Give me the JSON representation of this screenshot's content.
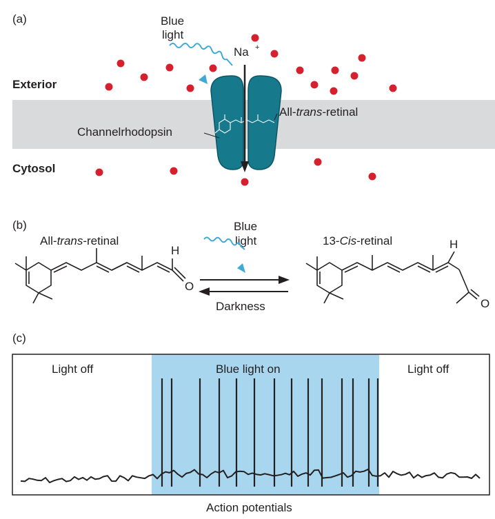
{
  "panel_a": {
    "label": "(a)",
    "light_label_line1": "Blue",
    "light_label_line2": "light",
    "ion_label": "Na",
    "ion_charge": "+",
    "exterior_label": "Exterior",
    "cytosol_label": "Cytosol",
    "retinal_label_prefix": "All-",
    "retinal_label_italic": "trans",
    "retinal_label_suffix": "-retinal",
    "channel_label": "Channelrhodopsin"
  },
  "panel_b": {
    "label": "(b)",
    "left_name_prefix": "All-",
    "left_name_italic": "trans",
    "left_name_suffix": "-retinal",
    "right_name_prefix": "13-",
    "right_name_italic": "Cis",
    "right_name_suffix": "-retinal",
    "forward_line1": "Blue",
    "forward_line2": "light",
    "reverse_label": "Darkness",
    "atom_h": "H",
    "atom_o": "O"
  },
  "panel_c": {
    "label": "(c)",
    "left_label": "Light off",
    "middle_label": "Blue light on",
    "right_label": "Light off",
    "caption": "Action potentials",
    "spike_count": 14
  },
  "colors": {
    "ion_red": "#d6202e",
    "membrane_gray": "#d9dadb",
    "channel_teal": "#17798c",
    "channel_dark": "#0d5566",
    "blue_light_wave": "#3fa9d8",
    "stimulus_blue": "#a9d6ef",
    "ink": "#231f20"
  }
}
